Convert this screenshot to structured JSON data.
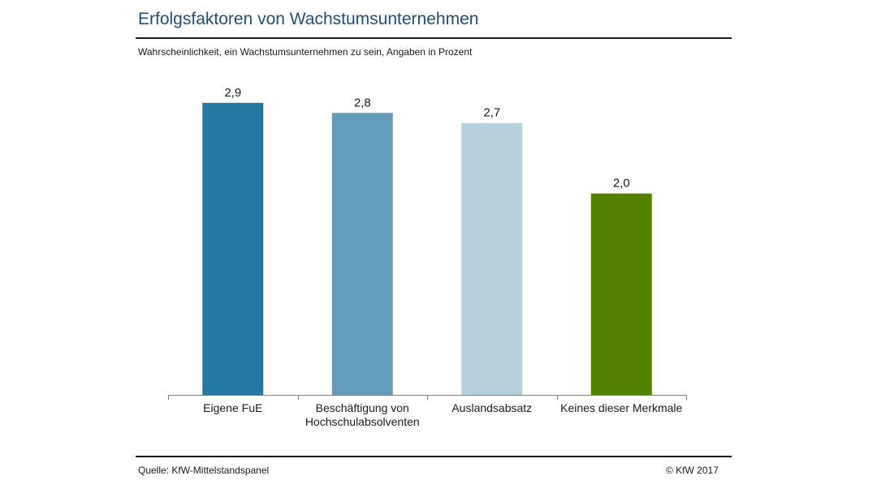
{
  "header": {
    "title": "Erfolgsfaktoren von Wachstumsunternehmen",
    "subtitle": "Wahrscheinlichkeit, ein Wachstumsunternehmen zu sein, Angaben in Prozent"
  },
  "footer": {
    "source": "Quelle: KfW-Mittelstandspanel",
    "copyright": "© KfW 2017"
  },
  "chart_data": {
    "type": "bar",
    "title": "Erfolgsfaktoren von Wachstumsunternehmen",
    "subtitle": "Wahrscheinlichkeit, ein Wachstumsunternehmen zu sein, Angaben in Prozent",
    "categories": [
      [
        "Eigene FuE"
      ],
      [
        "Beschäftigung von",
        "Hochschulabsolventen"
      ],
      [
        "Auslandsabsatz"
      ],
      [
        "Keines dieser Merkmale"
      ]
    ],
    "values": [
      2.9,
      2.8,
      2.7,
      2.0
    ],
    "value_labels": [
      "2,9",
      "2,8",
      "2,7",
      "2,0"
    ],
    "colors": [
      "#2479a2",
      "#639cba",
      "#b6d1dc",
      "#538200"
    ],
    "ylim": [
      0,
      3.1
    ],
    "grid": false,
    "legend": "none"
  }
}
